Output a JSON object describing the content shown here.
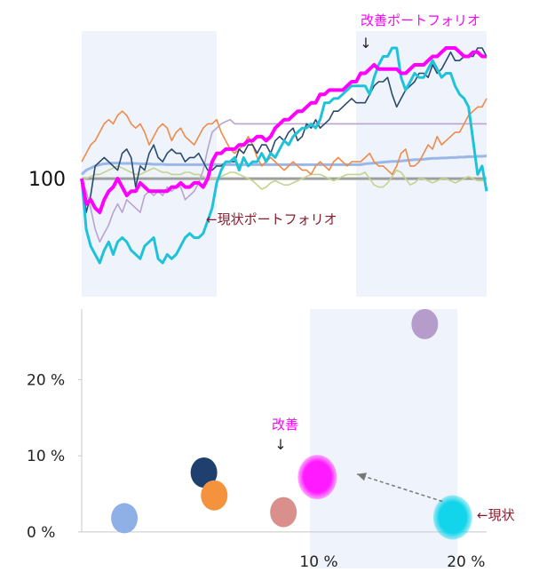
{
  "chart_data": [
    {
      "type": "line",
      "baseline_label": "100",
      "baseline_value": 100,
      "annotations": {
        "improved": "改善ポートフォリオ",
        "current": "←現状ポートフォリオ",
        "down_arrow": "↓"
      },
      "colors": {
        "improved": "#ff00ff",
        "cyan": "#1fc3d9",
        "navy": "#2c4a6e",
        "orange": "#f08a4b",
        "lavender": "#b9a3cf",
        "olive": "#c3d48e",
        "lightblue": "#9ab7e6",
        "baseline": "#9e9e9e",
        "shade": "#eef3fc",
        "annotation_text": "#8b1a2b"
      },
      "x": [
        0,
        1,
        2,
        3,
        4,
        5,
        6,
        7,
        8,
        9,
        10,
        11,
        12,
        13,
        14,
        15,
        16,
        17,
        18,
        19,
        20,
        21,
        22,
        23,
        24,
        25,
        26,
        27,
        28,
        29,
        30,
        31,
        32,
        33,
        34,
        35,
        36,
        37,
        38,
        39,
        40,
        41,
        42,
        43,
        44,
        45,
        46,
        47,
        48,
        49,
        50,
        51,
        52,
        53,
        54,
        55,
        56,
        57,
        58,
        59,
        60,
        61,
        62,
        63,
        64,
        65,
        66,
        67,
        68,
        69,
        70,
        71,
        72,
        73,
        74,
        75,
        76,
        77,
        78,
        79,
        80,
        81,
        82,
        83,
        84,
        85,
        86,
        87,
        88,
        89,
        90
      ],
      "xlim": [
        0,
        90
      ],
      "ylim": [
        72,
        135
      ],
      "shaded_ranges": [
        [
          0,
          30
        ],
        [
          61,
          90
        ]
      ],
      "series": [
        {
          "color": "baseline",
          "values": [
            100,
            100,
            100,
            100,
            100,
            100,
            100,
            100,
            100,
            100,
            100,
            100,
            100,
            100,
            100,
            100,
            100,
            100,
            100,
            100,
            100,
            100,
            100,
            100,
            100,
            100,
            100,
            100,
            100,
            100,
            100,
            100,
            100,
            100,
            100,
            100,
            100,
            100,
            100,
            100,
            100,
            100,
            100,
            100,
            100,
            100,
            100,
            100,
            100,
            100,
            100,
            100,
            100,
            100,
            100,
            100,
            100,
            100,
            100,
            100,
            100,
            100,
            100,
            100,
            100,
            100,
            100,
            100,
            100,
            100,
            100,
            100,
            100,
            100,
            100,
            100,
            100,
            100,
            100,
            100,
            100,
            100,
            100,
            100,
            100,
            100,
            100,
            100,
            100,
            100,
            100
          ]
        },
        {
          "color": "lightblue",
          "values": [
            101,
            102,
            102.5,
            103,
            103.3,
            103.5,
            103.6,
            103.7,
            103.7,
            103.6,
            103.6,
            103.6,
            103.6,
            103.5,
            103.5,
            103.5,
            103.4,
            103.4,
            103.4,
            103.3,
            103.3,
            103.3,
            103.3,
            103.3,
            103.3,
            103.3,
            103.3,
            103.3,
            103.3,
            103.3,
            103.3,
            103.3,
            103.3,
            103.3,
            103.3,
            103.3,
            103.3,
            103.3,
            103.3,
            103.3,
            103.3,
            103.3,
            103.3,
            103.3,
            103.3,
            103.3,
            103.3,
            103.3,
            103.3,
            103.3,
            103.3,
            103.3,
            103.3,
            103.3,
            103.3,
            103.3,
            103.3,
            103.3,
            103.3,
            103.3,
            103.3,
            103.3,
            103.3,
            103.5,
            103.6,
            103.7,
            103.8,
            103.9,
            104,
            104.1,
            104.1,
            104.2,
            104.3,
            104.4,
            104.5,
            104.5,
            104.6,
            104.7,
            104.8,
            104.8,
            104.9,
            104.9,
            105,
            105,
            105.1,
            105.1,
            105.2,
            105.2,
            105.3,
            105.3,
            105.4
          ]
        },
        {
          "color": "olive",
          "values": [
            100,
            100,
            100.5,
            101,
            101,
            101.5,
            102,
            102.5,
            103,
            102.5,
            102,
            101.5,
            101,
            101,
            101.5,
            102,
            102.5,
            102,
            101.5,
            101.5,
            101,
            101,
            101,
            101.5,
            101.5,
            101,
            101,
            100.5,
            100,
            100,
            100,
            100.5,
            101,
            101.5,
            101.5,
            101,
            100.5,
            100,
            99.5,
            98.5,
            97.5,
            98,
            99,
            99.5,
            99,
            98.5,
            98.5,
            99,
            99.5,
            100,
            100.5,
            101,
            101,
            101,
            100.5,
            100,
            99.5,
            100,
            100.5,
            101,
            101,
            101,
            101,
            101.5,
            100,
            98.5,
            98,
            98,
            99,
            100.5,
            102,
            101.5,
            100,
            98.5,
            99,
            100,
            100,
            99.5,
            99,
            99.5,
            100,
            100,
            99.5,
            99,
            99.5,
            100,
            100.5,
            100,
            99.5,
            99.5,
            100
          ]
        },
        {
          "color": "lavender",
          "values": [
            100,
            97,
            93,
            88,
            85,
            87,
            89,
            92,
            94,
            92,
            95,
            94,
            93,
            92,
            96,
            97,
            96,
            97,
            96,
            98,
            97,
            98,
            98,
            95,
            96,
            97,
            99,
            102,
            107,
            111,
            112,
            113,
            113.5,
            114,
            113,
            113,
            113,
            113,
            113,
            113,
            113,
            113,
            113,
            113,
            113,
            113,
            113,
            113,
            113,
            113,
            113,
            113,
            113,
            113,
            113,
            113,
            113,
            113,
            113,
            113,
            113,
            113,
            113,
            113,
            113,
            113,
            113,
            113,
            113,
            113,
            113,
            113,
            113,
            113,
            113,
            113,
            113,
            113,
            113,
            113,
            113,
            113,
            113,
            113,
            113,
            113,
            113,
            113,
            113,
            113,
            113
          ]
        },
        {
          "color": "orange",
          "values": [
            104,
            106,
            108,
            109,
            111,
            113,
            114,
            113,
            115,
            116,
            115,
            113,
            112,
            113,
            111,
            108,
            110,
            112,
            113,
            112,
            109,
            111,
            112,
            110,
            109,
            108,
            110,
            112,
            113,
            113,
            114,
            111,
            109,
            107,
            106,
            107,
            108,
            110,
            108,
            105,
            103,
            104,
            105,
            104,
            103,
            102,
            103,
            104,
            103,
            102,
            102,
            101,
            103,
            104,
            103,
            102,
            104,
            105,
            104,
            103,
            104,
            104,
            104,
            105,
            106,
            104,
            103,
            103,
            102,
            101,
            103,
            106,
            107,
            103,
            103,
            104,
            106,
            108,
            107,
            110,
            108,
            109,
            110,
            111,
            111,
            113,
            115,
            116,
            117,
            117,
            119
          ]
        },
        {
          "color": "navy",
          "values": [
            100,
            92,
            96,
            103,
            104,
            105,
            104,
            103,
            102,
            106,
            107,
            105,
            98,
            103,
            102,
            106,
            108,
            105,
            104,
            106,
            107,
            106,
            106,
            104,
            105,
            105,
            106,
            104,
            102,
            102,
            103,
            103,
            104,
            104,
            104,
            107,
            106,
            108,
            108,
            106,
            108,
            108,
            106,
            109,
            110,
            109,
            111,
            112,
            109,
            110,
            113,
            112,
            114,
            112,
            113,
            114,
            116,
            116,
            117,
            118,
            119,
            118,
            118,
            118,
            120,
            122,
            123,
            123,
            124,
            120,
            117,
            119,
            121,
            122,
            123,
            125,
            125,
            124,
            127,
            125,
            126,
            128,
            130,
            128,
            128,
            129,
            129,
            129,
            131,
            131,
            129
          ]
        },
        {
          "color": "cyan",
          "values": [
            100,
            88,
            84,
            82,
            80,
            83,
            85,
            82,
            85,
            86,
            85,
            83,
            82,
            81,
            84,
            85,
            86,
            81,
            80,
            82,
            81,
            82,
            84,
            86,
            87,
            86,
            86,
            87,
            90,
            93,
            99,
            102,
            104,
            104,
            105,
            102,
            105,
            103,
            104,
            104,
            106,
            104,
            106,
            105,
            107,
            109,
            108,
            110,
            111,
            112,
            112,
            113,
            112,
            114,
            118,
            118,
            119,
            119,
            120,
            121,
            122,
            122,
            122,
            122,
            120,
            124,
            127,
            129,
            129,
            131,
            131,
            124,
            121,
            123,
            125,
            124,
            124,
            126,
            128,
            126,
            124,
            125,
            125,
            122,
            120,
            119,
            117,
            109,
            101,
            103,
            97
          ]
        },
        {
          "color": "improved",
          "values": [
            100,
            94,
            95,
            93,
            92,
            95,
            97,
            98,
            100,
            98,
            96,
            97,
            97,
            99,
            98,
            97,
            97,
            97,
            97,
            97,
            98,
            98,
            99,
            98,
            98,
            99,
            99,
            98,
            100,
            104,
            106,
            106,
            107,
            107,
            107,
            108,
            108,
            109,
            109,
            110,
            110,
            109,
            110,
            112,
            113,
            114,
            114,
            115,
            116,
            116,
            117,
            118,
            118,
            120,
            120,
            121,
            121,
            121,
            121,
            122,
            123,
            123,
            125,
            125,
            126,
            127,
            126,
            126,
            126,
            126,
            126,
            125,
            125,
            126,
            127,
            127,
            127,
            128,
            129,
            129,
            130,
            131,
            131,
            131,
            130,
            129,
            129,
            130,
            130,
            129,
            129
          ]
        }
      ]
    },
    {
      "type": "scatter",
      "x_ticks": [
        "10 %",
        "20 %"
      ],
      "y_ticks": [
        "0 %",
        "10 %",
        "20 %"
      ],
      "x_tick_values": [
        10,
        20
      ],
      "y_tick_values": [
        0,
        10,
        20
      ],
      "xlim": [
        -5.5,
        22
      ],
      "ylim": [
        -2,
        29.5
      ],
      "shaded_x_range": [
        10,
        20
      ],
      "annotations": {
        "improved": "改善",
        "improved_arrow": "↓",
        "current": "←現状"
      },
      "points": [
        {
          "x": -2.6,
          "y": 1.8,
          "size": "small",
          "color": "#8eb0e6"
        },
        {
          "x": 2.8,
          "y": 7.8,
          "size": "small",
          "color": "#1f3f6e"
        },
        {
          "x": 3.5,
          "y": 4.8,
          "size": "small",
          "color": "#f5923e"
        },
        {
          "x": 8.2,
          "y": 2.6,
          "size": "small",
          "color": "#d9908c"
        },
        {
          "x": 17.8,
          "y": 27.3,
          "size": "small",
          "color": "#b59ccb"
        },
        {
          "x": 10.5,
          "y": 7.2,
          "size": "large",
          "color": "#ff1aff"
        },
        {
          "x": 19.7,
          "y": 1.9,
          "size": "large",
          "color": "#12d4ea"
        }
      ],
      "move_arrow": {
        "from": [
          19.0,
          4.0
        ],
        "to": [
          13.2,
          7.6
        ]
      }
    }
  ]
}
